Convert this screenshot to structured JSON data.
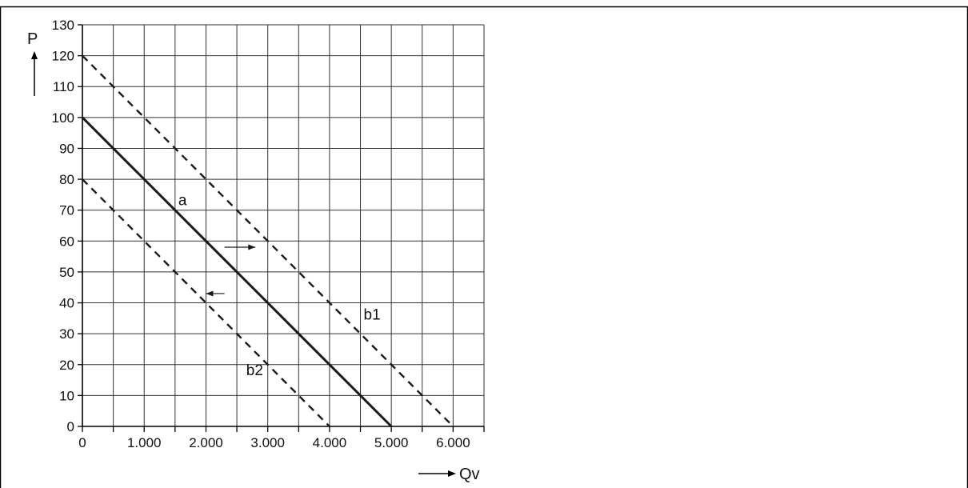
{
  "chart_data": {
    "type": "line",
    "title": "",
    "xlabel": "Qv",
    "ylabel": "P",
    "xlim": [
      0,
      6500
    ],
    "ylim": [
      0,
      130
    ],
    "grid": true,
    "x_ticks": [
      "0",
      "1.000",
      "2.000",
      "3.000",
      "4.000",
      "5.000",
      "6.000"
    ],
    "x_tick_values": [
      0,
      1000,
      2000,
      3000,
      4000,
      5000,
      6000
    ],
    "y_ticks": [
      "0",
      "10",
      "20",
      "30",
      "40",
      "50",
      "60",
      "70",
      "80",
      "90",
      "100",
      "110",
      "120",
      "130"
    ],
    "y_tick_values": [
      0,
      10,
      20,
      30,
      40,
      50,
      60,
      70,
      80,
      90,
      100,
      110,
      120,
      130
    ],
    "series": [
      {
        "name": "a",
        "style": "solid",
        "x": [
          0,
          5000
        ],
        "y": [
          100,
          0
        ]
      },
      {
        "name": "b1",
        "style": "dashed",
        "x": [
          0,
          6000
        ],
        "y": [
          120,
          0
        ]
      },
      {
        "name": "b2",
        "style": "dashed",
        "x": [
          0,
          4000
        ],
        "y": [
          80,
          0
        ]
      }
    ],
    "label_points": [
      {
        "text": "a",
        "x": 1500,
        "y": 70
      },
      {
        "text": "b1",
        "x": 4500,
        "y": 33
      },
      {
        "text": "b2",
        "x": 2600,
        "y": 15
      }
    ],
    "arrows": [
      {
        "direction": "right",
        "x_from": 2300,
        "x_to": 2800,
        "y": 58
      },
      {
        "direction": "left",
        "x_from": 2300,
        "x_to": 2000,
        "y": 43
      }
    ],
    "colors": {
      "line": "#1a1a1a",
      "grid": "#333333",
      "frame": "#000000"
    }
  }
}
